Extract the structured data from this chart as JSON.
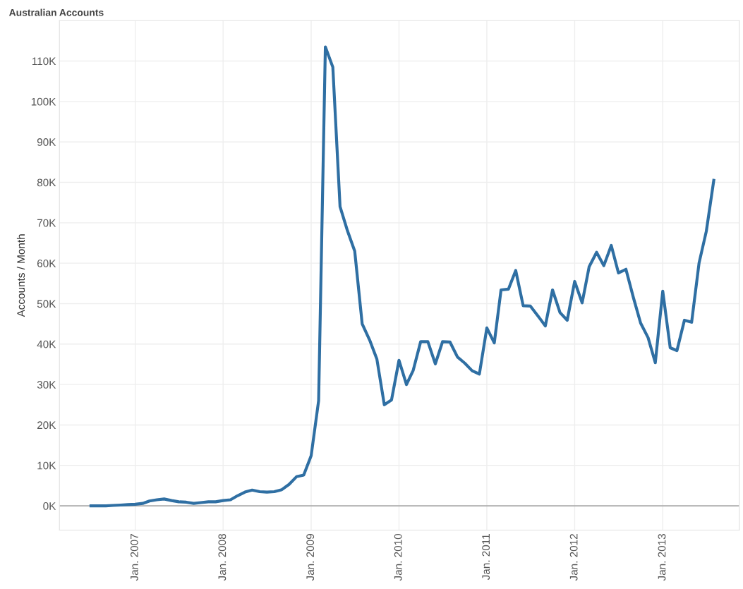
{
  "chart_data": {
    "type": "line",
    "title": "Australian Accounts",
    "ylabel": "Accounts / Month",
    "x": [
      "2006-07",
      "2006-08",
      "2006-09",
      "2006-10",
      "2006-11",
      "2006-12",
      "2007-01",
      "2007-02",
      "2007-03",
      "2007-04",
      "2007-05",
      "2007-06",
      "2007-07",
      "2007-08",
      "2007-09",
      "2007-10",
      "2007-11",
      "2007-12",
      "2008-01",
      "2008-02",
      "2008-03",
      "2008-04",
      "2008-05",
      "2008-06",
      "2008-07",
      "2008-08",
      "2008-09",
      "2008-10",
      "2008-11",
      "2008-12",
      "2009-01",
      "2009-02",
      "2009-03",
      "2009-04",
      "2009-05",
      "2009-06",
      "2009-07",
      "2009-08",
      "2009-09",
      "2009-10",
      "2009-11",
      "2009-12",
      "2010-01",
      "2010-02",
      "2010-03",
      "2010-04",
      "2010-05",
      "2010-06",
      "2010-07",
      "2010-08",
      "2010-09",
      "2010-10",
      "2010-11",
      "2010-12",
      "2011-01",
      "2011-02",
      "2011-03",
      "2011-04",
      "2011-05",
      "2011-06",
      "2011-07",
      "2011-08",
      "2011-09",
      "2011-10",
      "2011-11",
      "2011-12",
      "2012-01",
      "2012-02",
      "2012-03",
      "2012-04",
      "2012-05",
      "2012-06",
      "2012-07",
      "2012-08",
      "2012-09",
      "2012-10",
      "2012-11",
      "2012-12",
      "2013-01",
      "2013-02",
      "2013-03",
      "2013-04",
      "2013-05",
      "2013-06",
      "2013-07",
      "2013-08"
    ],
    "series": [
      {
        "color": "#2f6fa3",
        "values": [
          0,
          0,
          0,
          100,
          200,
          300,
          400,
          600,
          1200,
          1500,
          1700,
          1300,
          1000,
          900,
          600,
          800,
          1000,
          1000,
          1300,
          1500,
          2500,
          3400,
          3900,
          3500,
          3400,
          3500,
          4000,
          5300,
          7200,
          7600,
          12400,
          26000,
          113500,
          108500,
          74000,
          68000,
          63000,
          45000,
          41000,
          36300,
          25000,
          26200,
          36000,
          30000,
          33500,
          40600,
          40600,
          35100,
          40600,
          40500,
          36800,
          35300,
          33400,
          32600,
          44000,
          40300,
          53400,
          53600,
          58200,
          49500,
          49400,
          47000,
          44500,
          53400,
          47800,
          45900,
          55500,
          50200,
          59100,
          62700,
          59400,
          64400,
          57600,
          58500,
          51500,
          45200,
          41600,
          35400,
          53100,
          39100,
          38400,
          45900,
          45400,
          60100,
          67900,
          80500
        ]
      }
    ],
    "xlim": [
      "2006-02-20",
      "2013-11-15"
    ],
    "xticks": [
      {
        "value": "2007-01-01",
        "label": "Jan. 2007"
      },
      {
        "value": "2008-01-01",
        "label": "Jan. 2008"
      },
      {
        "value": "2009-01-01",
        "label": "Jan. 2009"
      },
      {
        "value": "2010-01-01",
        "label": "Jan. 2010"
      },
      {
        "value": "2011-01-01",
        "label": "Jan. 2011"
      },
      {
        "value": "2012-01-01",
        "label": "Jan. 2012"
      },
      {
        "value": "2013-01-01",
        "label": "Jan. 2013"
      }
    ],
    "ylim": [
      -6000,
      120000
    ],
    "yticks": [
      {
        "value": 0,
        "label": "0K"
      },
      {
        "value": 10000,
        "label": "10K"
      },
      {
        "value": 20000,
        "label": "20K"
      },
      {
        "value": 30000,
        "label": "30K"
      },
      {
        "value": 40000,
        "label": "40K"
      },
      {
        "value": 50000,
        "label": "50K"
      },
      {
        "value": 60000,
        "label": "60K"
      },
      {
        "value": 70000,
        "label": "70K"
      },
      {
        "value": 80000,
        "label": "80K"
      },
      {
        "value": 90000,
        "label": "90K"
      },
      {
        "value": 100000,
        "label": "100K"
      },
      {
        "value": 110000,
        "label": "110K"
      }
    ],
    "ref_lines": [
      {
        "axis": "y",
        "value": 0,
        "color": "#aaaaaa"
      }
    ],
    "grid": true,
    "line_style": "solid",
    "marker": "none"
  }
}
